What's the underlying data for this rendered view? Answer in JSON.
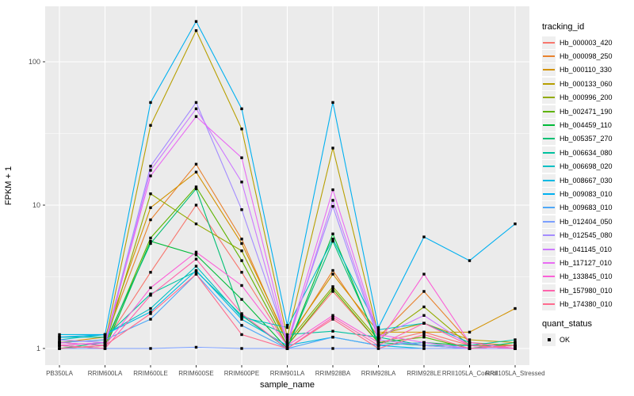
{
  "legend": {
    "tracking_title": "tracking_id",
    "quant_title": "quant_status",
    "quant_label": "OK"
  },
  "panel": {
    "bg": "#EBEBEB",
    "grid": "#FFFFFF",
    "tick_label_color": "#4D4D4D",
    "axis_title_color": "#000000",
    "point_color": "#000000"
  },
  "chart_data": {
    "type": "line",
    "title": "",
    "xlabel": "sample_name",
    "ylabel": "FPKM + 1",
    "y_scale": "log10",
    "y_ticks": [
      "1",
      "10",
      "100"
    ],
    "ylim": [
      1,
      244
    ],
    "grid": true,
    "legend_position": "right",
    "point_shape": "filled-black-square",
    "categories": [
      "PB350LA",
      "RRIM600LA",
      "RRIM600LE",
      "RRIM600SE",
      "RRIM600PE",
      "RRIM901LA",
      "RRIM928BA",
      "RRIM928LA",
      "RRIM928LE",
      "RRII105LA_Control",
      "RRII105LA_Stressed"
    ],
    "series": [
      {
        "name": "Hb_000003_420",
        "color": "#F8766D",
        "values": [
          1.05,
          1.1,
          3.4,
          10.0,
          3.4,
          1.05,
          2.5,
          1.1,
          1.3,
          1.05,
          1.05
        ]
      },
      {
        "name": "Hb_000098_250",
        "color": "#E8822D",
        "values": [
          1.1,
          1.15,
          7.9,
          19.3,
          5.8,
          1.1,
          3.5,
          1.2,
          2.5,
          1.1,
          1.05
        ]
      },
      {
        "name": "Hb_000110_330",
        "color": "#D39200",
        "values": [
          1.1,
          1.2,
          9.6,
          17.0,
          5.4,
          1.15,
          3.3,
          1.3,
          1.3,
          1.3,
          1.9
        ]
      },
      {
        "name": "Hb_000133_060",
        "color": "#B79F00",
        "values": [
          1.05,
          1.1,
          36.0,
          165.0,
          34.0,
          1.2,
          25.0,
          1.25,
          1.5,
          1.15,
          1.1
        ]
      },
      {
        "name": "Hb_000996_200",
        "color": "#93AA00",
        "values": [
          1.1,
          1.05,
          12.0,
          7.4,
          4.8,
          1.1,
          2.7,
          1.15,
          1.95,
          1.05,
          1.05
        ]
      },
      {
        "name": "Hb_002471_190",
        "color": "#5EB300",
        "values": [
          1.0,
          1.05,
          5.9,
          13.4,
          4.1,
          1.05,
          2.6,
          1.1,
          1.2,
          1.0,
          1.05
        ]
      },
      {
        "name": "Hb_004459_110",
        "color": "#00BA38",
        "values": [
          1.05,
          1.0,
          5.6,
          4.5,
          2.2,
          1.0,
          6.3,
          1.05,
          1.1,
          1.05,
          1.0
        ]
      },
      {
        "name": "Hb_005357_270",
        "color": "#00BF74",
        "values": [
          1.0,
          1.1,
          5.4,
          13.0,
          1.7,
          1.0,
          5.6,
          1.1,
          1.05,
          1.0,
          1.1
        ]
      },
      {
        "name": "Hb_006634_080",
        "color": "#00C19F",
        "values": [
          1.2,
          1.2,
          2.4,
          3.45,
          1.7,
          1.25,
          1.32,
          1.2,
          1.05,
          1.05,
          1.15
        ]
      },
      {
        "name": "Hb_006698_020",
        "color": "#00BFC4",
        "values": [
          1.15,
          1.25,
          1.9,
          3.75,
          1.65,
          1.4,
          5.8,
          1.35,
          1.5,
          1.1,
          1.0
        ]
      },
      {
        "name": "Hb_008667_030",
        "color": "#00B9E3",
        "values": [
          1.25,
          1.25,
          1.8,
          3.5,
          1.6,
          1.05,
          1.2,
          1.05,
          1.0,
          1.0,
          1.05
        ]
      },
      {
        "name": "Hb_009083_010",
        "color": "#00B0F0",
        "values": [
          1.2,
          1.25,
          52.0,
          191.0,
          47.0,
          1.45,
          52.0,
          1.4,
          6.0,
          4.1,
          7.4
        ]
      },
      {
        "name": "Hb_009683_010",
        "color": "#4FA8F7",
        "values": [
          1.1,
          1.15,
          1.6,
          3.3,
          1.45,
          1.0,
          1.2,
          1.05,
          1.1,
          1.0,
          1.0
        ]
      },
      {
        "name": "Hb_012404_050",
        "color": "#7B9FFF",
        "values": [
          1.0,
          1.0,
          1.0,
          1.02,
          1.0,
          1.0,
          1.0,
          1.0,
          1.0,
          1.0,
          1.0
        ]
      },
      {
        "name": "Hb_012545_080",
        "color": "#A48CFF",
        "values": [
          1.15,
          1.1,
          18.7,
          52.0,
          9.3,
          1.1,
          9.8,
          1.15,
          1.05,
          1.0,
          1.0
        ]
      },
      {
        "name": "Hb_041145_010",
        "color": "#CD79FF",
        "values": [
          1.1,
          1.05,
          17.5,
          47.0,
          14.5,
          1.05,
          10.8,
          1.2,
          1.7,
          1.05,
          1.0
        ]
      },
      {
        "name": "Hb_117127_010",
        "color": "#E96BF3",
        "values": [
          1.05,
          1.1,
          16.0,
          41.5,
          21.4,
          1.1,
          12.8,
          1.25,
          1.1,
          1.0,
          1.05
        ]
      },
      {
        "name": "Hb_133845_010",
        "color": "#FB61D7",
        "values": [
          1.1,
          1.05,
          2.65,
          4.7,
          2.75,
          1.05,
          1.7,
          1.1,
          3.3,
          1.1,
          1.0
        ]
      },
      {
        "name": "Hb_157980_010",
        "color": "#FF64AC",
        "values": [
          1.05,
          1.0,
          2.35,
          4.2,
          1.75,
          1.0,
          1.65,
          1.05,
          1.5,
          1.05,
          1.0
        ]
      },
      {
        "name": "Hb_174380_010",
        "color": "#FF6B8E",
        "values": [
          1.0,
          1.05,
          1.75,
          3.3,
          1.25,
          1.0,
          1.6,
          1.0,
          1.25,
          1.0,
          1.05
        ]
      }
    ]
  }
}
